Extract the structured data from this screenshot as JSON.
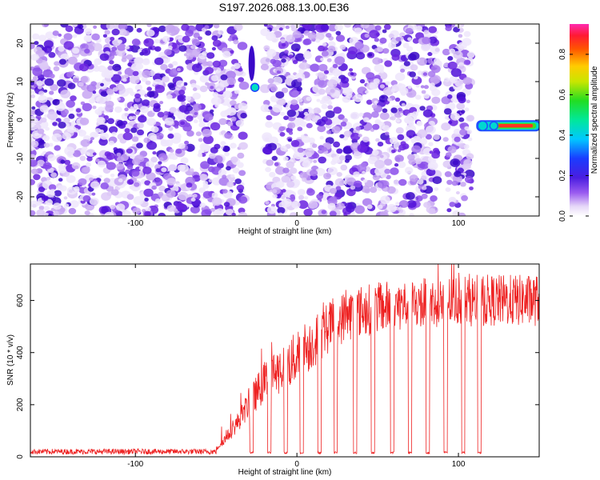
{
  "figure_title": "S197.2026.088.13.00.E36",
  "chart_data": [
    {
      "type": "heatmap",
      "title": "S197.2026.088.13.00.E36",
      "xlabel": "Height of straight line (km)",
      "ylabel": "Frequency (Hz)",
      "xlim": [
        -165,
        150
      ],
      "ylim": [
        -25,
        25
      ],
      "xticks": [
        -100,
        0,
        100
      ],
      "yticks": [
        -20,
        -10,
        0,
        10,
        20
      ],
      "grid": false,
      "colorbar": {
        "label": "Normalized spectral amplitude",
        "range": [
          0,
          0.95
        ],
        "ticks": [
          0,
          0.2,
          0.4,
          0.6,
          0.8
        ],
        "tick_labels": [
          "0.0",
          "0.2",
          "0.4",
          "0.6",
          "0.8"
        ],
        "colormap": "rainbow (white-violet-blue-cyan-green-yellow-red-magenta)"
      },
      "features": [
        {
          "name": "noise background",
          "x_range": [
            -165,
            108
          ],
          "y_range": [
            -25,
            25
          ],
          "amplitude": 0.1
        },
        {
          "name": "dc line",
          "x_range": [
            112,
            150
          ],
          "y": -1.5,
          "amplitude": 0.9
        },
        {
          "name": "transient spot",
          "x": -26,
          "y": 8.5,
          "amplitude": 0.35
        },
        {
          "name": "vertical gap",
          "x_range": [
            -32,
            -20
          ]
        },
        {
          "name": "vertical gap",
          "x_range": [
            87,
            92
          ]
        }
      ]
    },
    {
      "type": "line",
      "xlabel": "Height of straight line (km)",
      "ylabel": "SNR (10 * v/v)",
      "xlim": [
        -165,
        150
      ],
      "ylim": [
        0,
        740
      ],
      "xticks": [
        -100,
        0,
        100
      ],
      "yticks": [
        0,
        200,
        400,
        600
      ],
      "grid": false,
      "series_color": "#ee2222",
      "baseline_noise": {
        "x_range": [
          -165,
          -50
        ],
        "mean": 20,
        "spread": 15
      },
      "ramp": [
        {
          "x": -50,
          "y": 30
        },
        {
          "x": -40,
          "y": 100
        },
        {
          "x": -30,
          "y": 200
        },
        {
          "x": -20,
          "y": 290
        },
        {
          "x": -10,
          "y": 340
        },
        {
          "x": 0,
          "y": 380
        },
        {
          "x": 10,
          "y": 440
        },
        {
          "x": 20,
          "y": 500
        },
        {
          "x": 30,
          "y": 540
        },
        {
          "x": 40,
          "y": 560
        },
        {
          "x": 60,
          "y": 580
        },
        {
          "x": 100,
          "y": 600
        },
        {
          "x": 150,
          "y": 600
        }
      ],
      "dropouts": [
        -28,
        -17,
        -7,
        3,
        14,
        24,
        36,
        47,
        59,
        70,
        81,
        92,
        103,
        113
      ],
      "dropout_level": 12
    }
  ]
}
